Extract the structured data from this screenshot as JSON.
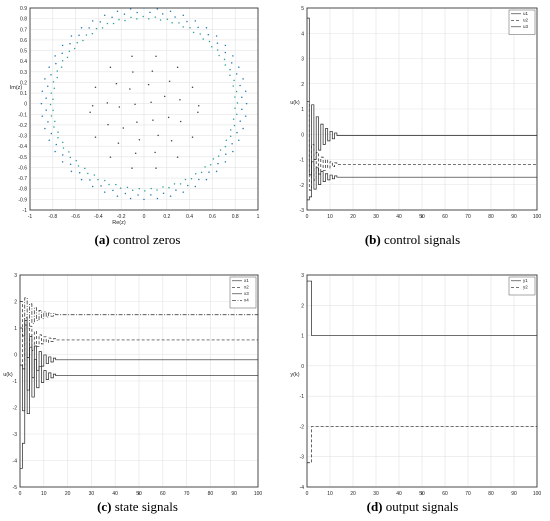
{
  "figure": {
    "captions": [
      {
        "tag": "(a)",
        "text": " control zeros"
      },
      {
        "tag": "(b)",
        "text": " control signals"
      },
      {
        "tag": "(c)",
        "text": " state signals"
      },
      {
        "tag": "(d)",
        "text": " output signals"
      }
    ]
  },
  "chart_data": [
    {
      "type": "scatter",
      "panel": "a",
      "xlabel": "Re(z)",
      "ylabel": "Im(z)",
      "xlim": [
        -1,
        1
      ],
      "ylim": [
        -1,
        0.9
      ],
      "xticks": [
        -1,
        -0.8,
        -0.6,
        -0.4,
        -0.2,
        0,
        0.2,
        0.4,
        0.6,
        0.8,
        1
      ],
      "yticks": [
        -1,
        -0.9,
        -0.8,
        -0.7,
        -0.6,
        -0.5,
        -0.4,
        -0.3,
        -0.2,
        -0.1,
        0,
        0.1,
        0.2,
        0.3,
        0.4,
        0.5,
        0.6,
        0.7,
        0.8,
        0.9
      ],
      "grid": true,
      "series": [
        {
          "shape": "circle",
          "radius": 0.9,
          "points": 48,
          "color": "#1f77b4"
        },
        {
          "shape": "circle",
          "radius": 0.86,
          "points": 48,
          "color": "#1f77b4"
        },
        {
          "shape": "circle",
          "radius": 0.82,
          "points": 48,
          "color": "#2aa198"
        },
        {
          "shape": "circle",
          "radius": 0.8,
          "points": 48,
          "color": "#2aa198"
        },
        {
          "shape": "inner-cluster",
          "radius": 0.5,
          "points": 40,
          "color": "#444444"
        }
      ]
    },
    {
      "type": "line",
      "panel": "b",
      "xlabel": "k",
      "ylabel": "u(k)",
      "xlim": [
        0,
        100
      ],
      "ylim": [
        -3,
        5
      ],
      "xticks": [
        0,
        10,
        20,
        30,
        40,
        50,
        60,
        70,
        80,
        90,
        100
      ],
      "yticks": [
        -3,
        -2,
        -1,
        0,
        1,
        2,
        3,
        4,
        5
      ],
      "grid": true,
      "legend": {
        "position": "top-right"
      },
      "series": [
        {
          "name": "u1",
          "dash": "solid",
          "start": 4.6,
          "final": -0.05,
          "amp": 2.0,
          "decay": 0.78,
          "settle": 12
        },
        {
          "name": "u2",
          "dash": "dashed",
          "start": 1.3,
          "final": -1.2,
          "amp": 1.3,
          "decay": 0.78,
          "settle": 12
        },
        {
          "name": "u3",
          "dash": "solid",
          "start": -2.6,
          "final": -1.7,
          "amp": 1.0,
          "decay": 0.78,
          "settle": 12
        }
      ]
    },
    {
      "type": "line",
      "panel": "c",
      "xlabel": "k",
      "ylabel": "u(k)",
      "xlim": [
        0,
        100
      ],
      "ylim": [
        -5,
        3
      ],
      "xticks": [
        0,
        10,
        20,
        30,
        40,
        50,
        60,
        70,
        80,
        90,
        100
      ],
      "yticks": [
        -5,
        -4,
        -3,
        -2,
        -1,
        0,
        1,
        2,
        3
      ],
      "grid": true,
      "legend": {
        "position": "top-right"
      },
      "series": [
        {
          "name": "x1",
          "dash": "solid",
          "start": -4.3,
          "final": -0.8,
          "amp": 3.4,
          "decay": 0.75,
          "settle": 14
        },
        {
          "name": "x2",
          "dash": "dashed",
          "start": 2.0,
          "final": 0.55,
          "amp": 1.4,
          "decay": 0.78,
          "settle": 14
        },
        {
          "name": "x3",
          "dash": "solid",
          "start": -0.4,
          "final": -0.2,
          "amp": 2.5,
          "decay": 0.77,
          "settle": 14
        },
        {
          "name": "x4",
          "dash": "dashdot",
          "start": 1.0,
          "final": 1.5,
          "amp": 1.0,
          "decay": 0.8,
          "settle": 14
        }
      ]
    },
    {
      "type": "line",
      "panel": "d",
      "xlabel": "k",
      "ylabel": "y(k)",
      "xlim": [
        0,
        100
      ],
      "ylim": [
        -4,
        3
      ],
      "xticks": [
        0,
        10,
        20,
        30,
        40,
        50,
        60,
        70,
        80,
        90,
        100
      ],
      "yticks": [
        -4,
        -3,
        -2,
        -1,
        0,
        1,
        2,
        3
      ],
      "grid": true,
      "legend": {
        "position": "top-right"
      },
      "series": [
        {
          "name": "y1",
          "dash": "solid",
          "start": 2.8,
          "final": 1.0
        },
        {
          "name": "y2",
          "dash": "dashed",
          "start": -3.2,
          "final": -2.0
        }
      ]
    }
  ]
}
